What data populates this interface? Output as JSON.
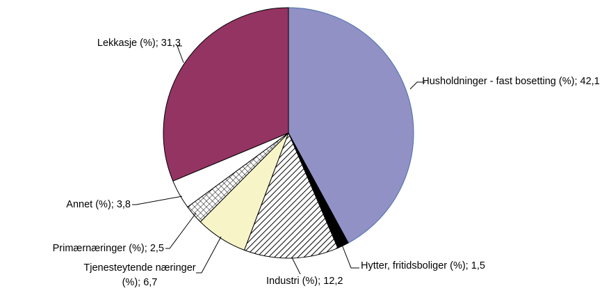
{
  "chart_data": {
    "type": "pie",
    "categories": [
      "Husholdninger - fast bosetting (%);",
      "Hytter, fritidsboliger (%);",
      "Industri (%);",
      "Tjenesteytende næringer (%);",
      "Primærnæringer (%);",
      "Annet (%);",
      "Lekkasje (%);"
    ],
    "values": [
      42.1,
      1.5,
      12.2,
      6.7,
      2.5,
      3.8,
      31.3
    ],
    "value_labels": [
      "42,1",
      "1,5",
      "12,2",
      "6,7",
      "2,5",
      "3,8",
      "31,3"
    ],
    "colors": [
      "#9191c6",
      "#000000",
      "hatch",
      "#f7f5c8",
      "cross",
      "#ffffff",
      "#943462"
    ]
  }
}
